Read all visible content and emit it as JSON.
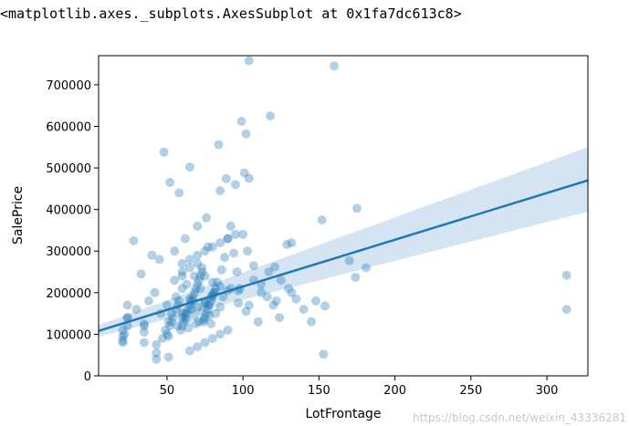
{
  "repr_text": "<matplotlib.axes._subplots.AxesSubplot at 0x1fa7dc613c8>",
  "watermark": "https://blog.csdn.net/weixin_43336281",
  "colors": {
    "points": "#1f77b4",
    "line": "#1f77b4",
    "band": "#c6dbef"
  },
  "chart_data": {
    "type": "scatter",
    "title": "",
    "xlabel": "LotFrontage",
    "ylabel": "SalePrice",
    "xlim": [
      5,
      327
    ],
    "ylim": [
      0,
      770000
    ],
    "xticks": [
      50,
      100,
      150,
      200,
      250,
      300
    ],
    "yticks": [
      0,
      100000,
      200000,
      300000,
      400000,
      500000,
      600000,
      700000
    ],
    "grid": false,
    "legend": "none",
    "regression": {
      "x": [
        5,
        327
      ],
      "y": [
        108000,
        470000
      ],
      "ci_upper": [
        122000,
        550000
      ],
      "ci_lower": [
        94000,
        395000
      ]
    },
    "points_x": [
      104,
      160,
      99,
      118,
      84,
      102,
      48,
      65,
      101,
      104,
      89,
      95,
      52,
      58,
      85,
      152,
      175,
      170,
      181,
      174,
      132,
      129,
      313,
      313,
      154,
      148,
      132,
      125,
      121,
      153,
      110,
      104,
      98,
      76,
      70,
      62,
      55,
      45,
      40,
      33,
      28,
      22,
      21,
      24,
      30,
      35,
      38,
      42,
      46,
      50,
      53,
      56,
      60,
      63,
      66,
      68,
      71,
      73,
      75,
      77,
      79,
      81,
      83,
      86,
      88,
      90,
      92,
      94,
      96,
      97,
      100,
      103,
      107,
      112,
      116,
      120,
      124,
      130,
      135,
      140,
      145,
      60,
      62,
      64,
      66,
      68,
      70,
      72,
      74,
      76,
      78,
      80,
      82,
      59,
      61,
      63,
      65,
      67,
      69,
      71,
      73,
      75,
      77,
      79,
      81,
      50,
      52,
      54,
      56,
      58,
      47,
      49,
      51,
      53,
      57,
      65,
      70,
      75,
      80,
      85,
      90,
      60,
      65,
      70,
      75,
      80,
      85,
      90,
      95,
      55,
      60,
      65,
      70,
      75,
      80,
      85,
      90,
      21,
      21,
      21,
      24,
      24,
      24,
      35,
      35,
      35,
      43,
      43,
      43,
      51,
      51,
      60,
      60,
      60,
      63,
      64,
      65,
      68,
      69,
      70,
      73,
      74,
      75,
      78,
      79,
      80,
      85,
      57,
      62,
      67,
      72,
      77,
      82,
      87,
      92,
      97,
      102,
      107,
      112,
      117,
      122
    ],
    "points_y": [
      758000,
      745000,
      612000,
      625000,
      556000,
      582000,
      538000,
      502000,
      488000,
      475000,
      474000,
      460000,
      465000,
      440000,
      445000,
      375000,
      403000,
      277000,
      260000,
      237000,
      320000,
      316000,
      242000,
      160000,
      168000,
      180000,
      200000,
      230000,
      262000,
      52000,
      130000,
      170000,
      210000,
      380000,
      360000,
      330000,
      300000,
      280000,
      290000,
      245000,
      325000,
      100000,
      80000,
      140000,
      160000,
      120000,
      180000,
      200000,
      150000,
      170000,
      130000,
      190000,
      140000,
      220000,
      160000,
      240000,
      130000,
      260000,
      175000,
      310000,
      190000,
      200000,
      225000,
      255000,
      285000,
      330000,
      360000,
      295000,
      250000,
      205000,
      340000,
      300000,
      265000,
      220000,
      190000,
      170000,
      140000,
      210000,
      185000,
      160000,
      130000,
      120000,
      140000,
      160000,
      180000,
      200000,
      220000,
      240000,
      130000,
      150000,
      170000,
      190000,
      210000,
      110000,
      130000,
      150000,
      170000,
      190000,
      210000,
      230000,
      250000,
      140000,
      160000,
      180000,
      200000,
      100000,
      120000,
      140000,
      160000,
      180000,
      90000,
      110000,
      130000,
      150000,
      170000,
      60000,
      70000,
      80000,
      90000,
      100000,
      110000,
      270000,
      280000,
      290000,
      300000,
      310000,
      320000,
      330000,
      340000,
      230000,
      250000,
      260000,
      270000,
      240000,
      225000,
      215000,
      205000,
      85000,
      95000,
      110000,
      120000,
      140000,
      170000,
      80000,
      105000,
      125000,
      40000,
      55000,
      75000,
      45000,
      95000,
      150000,
      210000,
      240000,
      135000,
      115000,
      185000,
      145000,
      125000,
      165000,
      155000,
      135000,
      175000,
      145000,
      125000,
      195000,
      165000,
      120000,
      150000,
      180000,
      210000,
      170000,
      150000,
      190000,
      210000,
      175000,
      155000,
      230000,
      200000,
      250000,
      180000
    ]
  }
}
